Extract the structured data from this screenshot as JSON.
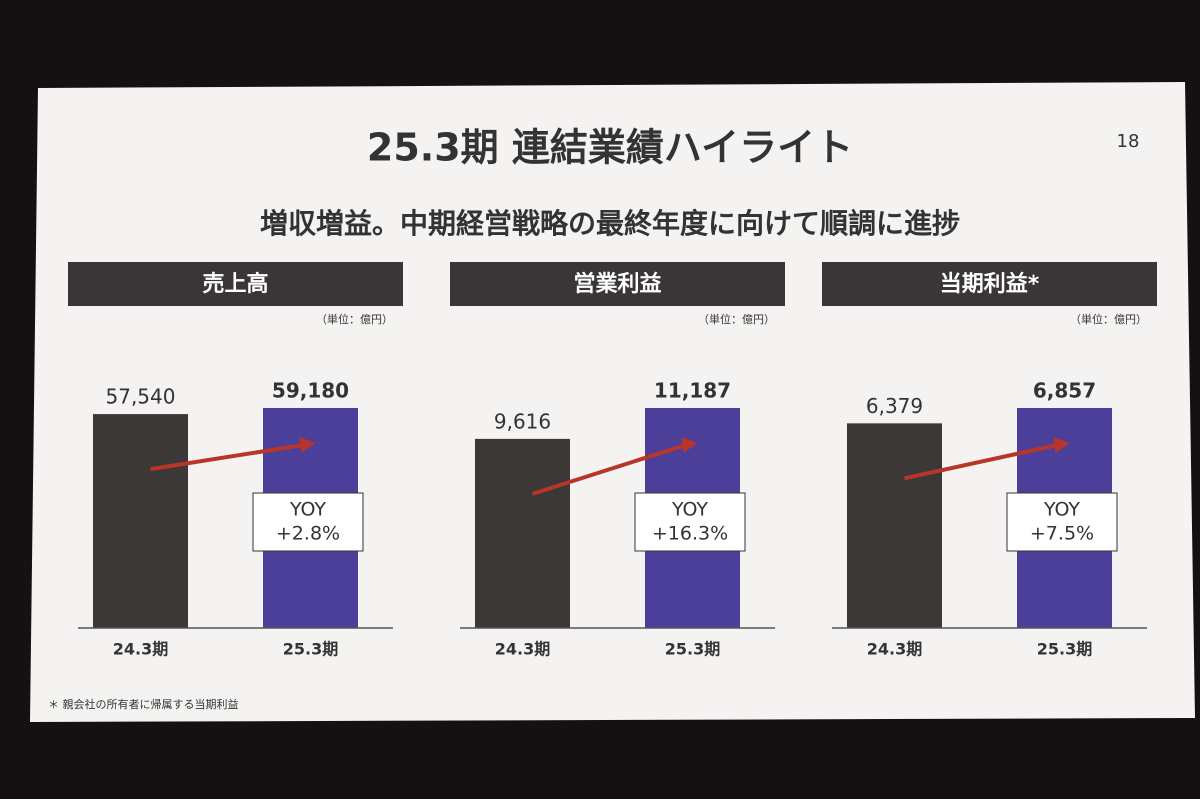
{
  "title": "25.3期 連結業績ハイライト",
  "page_number": "18",
  "subtitle": "増収増益。中期経営戦略の最終年度に向けて順調に進捗",
  "footnote": "＊ 親会社の所有者に帰属する当期利益",
  "chart_data": [
    {
      "type": "bar",
      "title": "売上高",
      "unit": "（単位：億円）",
      "categories": [
        "24.3期",
        "25.3期"
      ],
      "values": [
        57540,
        59180
      ],
      "value_labels": [
        "57,540",
        "59,180"
      ],
      "colors": [
        "#3d3838",
        "#4b3f99"
      ],
      "annotation": [
        "YOY",
        "+2.8%"
      ]
    },
    {
      "type": "bar",
      "title": "営業利益",
      "unit": "（単位：億円）",
      "categories": [
        "24.3期",
        "25.3期"
      ],
      "values": [
        9616,
        11187
      ],
      "value_labels": [
        "9,616",
        "11,187"
      ],
      "colors": [
        "#3d3838",
        "#4b3f99"
      ],
      "annotation": [
        "YOY",
        "+16.3%"
      ]
    },
    {
      "type": "bar",
      "title": "当期利益*",
      "unit": "（単位：億円）",
      "categories": [
        "24.3期",
        "25.3期"
      ],
      "values": [
        6379,
        6857
      ],
      "value_labels": [
        "6,379",
        "6,857"
      ],
      "colors": [
        "#3d3838",
        "#4b3f99"
      ],
      "annotation": [
        "YOY",
        "+7.5%"
      ]
    }
  ]
}
